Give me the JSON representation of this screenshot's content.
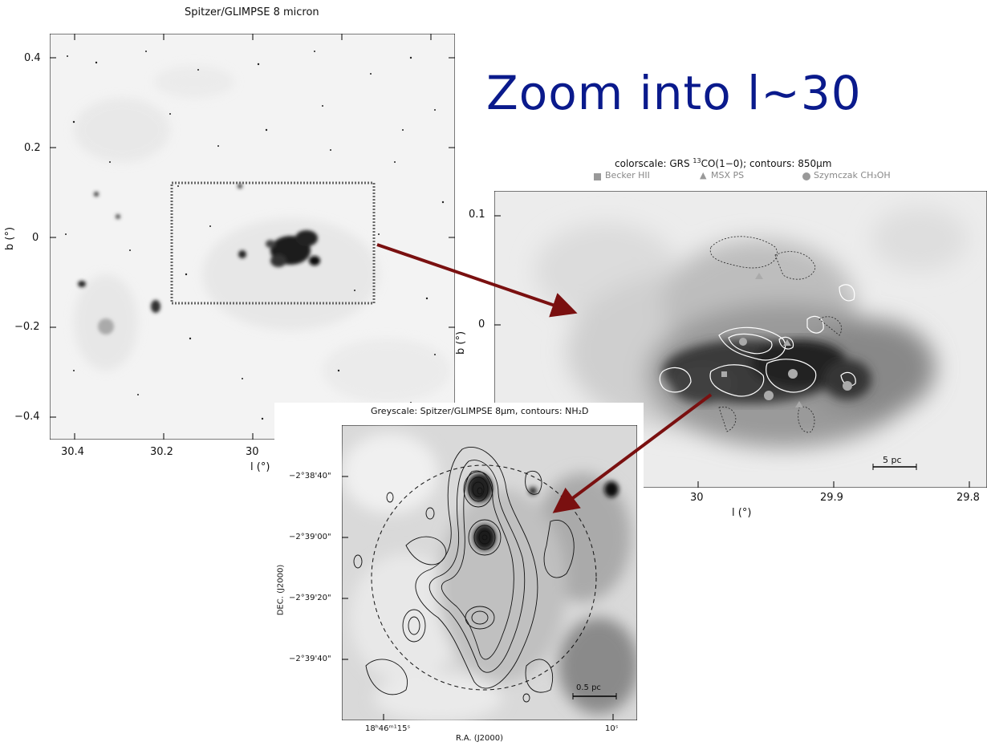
{
  "slide": {
    "title": "Zoom into l~30"
  },
  "panel_left": {
    "title": "Spitzer/GLIMPSE 8 micron",
    "y_ticks": [
      "0.4",
      "0.2",
      "0",
      "−0.2",
      "−0.4"
    ],
    "x_ticks": [
      "30.4",
      "30.2",
      "30"
    ],
    "ylabel": "b (°)",
    "xlabel": "l (°)"
  },
  "panel_right": {
    "title_pre": "colorscale: GRS ",
    "title_sup": "13",
    "title_post": "CO(1−0); contours: 850μm",
    "legend": [
      {
        "marker": "square",
        "label": "Becker HII"
      },
      {
        "marker": "triangle",
        "label": "MSX PS"
      },
      {
        "marker": "circle",
        "label": "Szymczak CH₃OH"
      }
    ],
    "y_ticks": [
      "0.1",
      "0"
    ],
    "x_ticks": [
      "30",
      "29.9",
      "29.8"
    ],
    "ylabel": "b (°)",
    "xlabel": "l (°)",
    "scalebar": "5 pc"
  },
  "panel_bottom": {
    "title": "Greyscale: Spitzer/GLIMPSE 8μm, contours: NH₂D",
    "y_ticks": [
      "−2°38'40\"",
      "−2°39'00\"",
      "−2°39'20\"",
      "−2°39'40\""
    ],
    "x_ticks": [
      "18ʰ46ᵐ¹15ˢ",
      "10ˢ"
    ],
    "ylabel": "DEC. (J2000)",
    "xlabel": "R.A. (J2000)",
    "scalebar": "0.5 pc"
  },
  "colors": {
    "title": "#0a1a8c",
    "arrow": "#7a1010"
  }
}
